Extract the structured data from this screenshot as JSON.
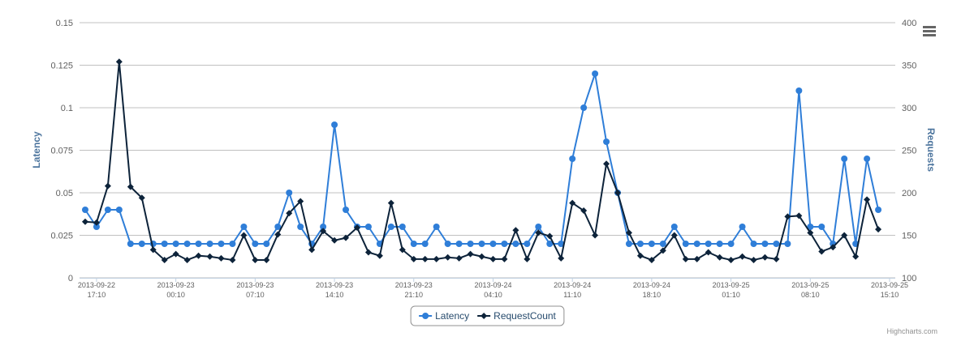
{
  "chart_data": {
    "type": "line",
    "x": [
      "2013-09-22 16:10",
      "2013-09-22 17:10",
      "2013-09-22 18:10",
      "2013-09-22 19:10",
      "2013-09-22 20:10",
      "2013-09-22 21:10",
      "2013-09-22 22:10",
      "2013-09-22 23:10",
      "2013-09-23 00:10",
      "2013-09-23 01:10",
      "2013-09-23 02:10",
      "2013-09-23 03:10",
      "2013-09-23 04:10",
      "2013-09-23 05:10",
      "2013-09-23 06:10",
      "2013-09-23 07:10",
      "2013-09-23 08:10",
      "2013-09-23 09:10",
      "2013-09-23 10:10",
      "2013-09-23 11:10",
      "2013-09-23 12:10",
      "2013-09-23 13:10",
      "2013-09-23 14:10",
      "2013-09-23 15:10",
      "2013-09-23 16:10",
      "2013-09-23 17:10",
      "2013-09-23 18:10",
      "2013-09-23 19:10",
      "2013-09-23 20:10",
      "2013-09-23 21:10",
      "2013-09-23 22:10",
      "2013-09-23 23:10",
      "2013-09-24 00:10",
      "2013-09-24 01:10",
      "2013-09-24 02:10",
      "2013-09-24 03:10",
      "2013-09-24 04:10",
      "2013-09-24 05:10",
      "2013-09-24 06:10",
      "2013-09-24 07:10",
      "2013-09-24 08:10",
      "2013-09-24 09:10",
      "2013-09-24 10:10",
      "2013-09-24 11:10",
      "2013-09-24 12:10",
      "2013-09-24 13:10",
      "2013-09-24 14:10",
      "2013-09-24 15:10",
      "2013-09-24 16:10",
      "2013-09-24 17:10",
      "2013-09-24 18:10",
      "2013-09-24 19:10",
      "2013-09-24 20:10",
      "2013-09-24 21:10",
      "2013-09-24 22:10",
      "2013-09-24 23:10",
      "2013-09-25 00:10",
      "2013-09-25 01:10",
      "2013-09-25 02:10",
      "2013-09-25 03:10",
      "2013-09-25 04:10",
      "2013-09-25 05:10",
      "2013-09-25 06:10",
      "2013-09-25 07:10",
      "2013-09-25 08:10",
      "2013-09-25 09:10",
      "2013-09-25 10:10",
      "2013-09-25 11:10",
      "2013-09-25 12:10",
      "2013-09-25 13:10",
      "2013-09-25 14:10"
    ],
    "series": [
      {
        "name": "Latency",
        "color": "#2f7ed8",
        "marker": "circle",
        "values": [
          0.04,
          0.03,
          0.04,
          0.04,
          0.02,
          0.02,
          0.02,
          0.02,
          0.02,
          0.02,
          0.02,
          0.02,
          0.02,
          0.02,
          0.03,
          0.02,
          0.02,
          0.03,
          0.05,
          0.03,
          0.02,
          0.03,
          0.09,
          0.04,
          0.03,
          0.03,
          0.02,
          0.03,
          0.03,
          0.02,
          0.02,
          0.03,
          0.02,
          0.02,
          0.02,
          0.02,
          0.02,
          0.02,
          0.02,
          0.02,
          0.03,
          0.02,
          0.02,
          0.07,
          0.1,
          0.12,
          0.08,
          0.05,
          0.02,
          0.02,
          0.02,
          0.02,
          0.03,
          0.02,
          0.02,
          0.02,
          0.02,
          0.02,
          0.03,
          0.02,
          0.02,
          0.02,
          0.02,
          0.11,
          0.03,
          0.03,
          0.02,
          0.07,
          0.02,
          0.07,
          0.04
        ]
      },
      {
        "name": "RequestCount",
        "color": "#0d233a",
        "marker": "diamond",
        "axis": "y2",
        "values": [
          166,
          165,
          208,
          354,
          207,
          194,
          133,
          121,
          128,
          121,
          126,
          125,
          123,
          121,
          150,
          121,
          121,
          151,
          176,
          190,
          133,
          155,
          144,
          147,
          159,
          130,
          126,
          188,
          133,
          122,
          122,
          122,
          124,
          123,
          128,
          125,
          122,
          122,
          156,
          122,
          153,
          149,
          123,
          188,
          179,
          150,
          234,
          200,
          153,
          126,
          121,
          132,
          150,
          122,
          122,
          130,
          124,
          121,
          125,
          121,
          124,
          122,
          172,
          173,
          153,
          131,
          136,
          150,
          125,
          192,
          157
        ]
      }
    ],
    "xlim": [
      "2013-09-22 15:40",
      "2013-09-25 15:40"
    ],
    "xticks": [
      "2013-09-22 17:10",
      "2013-09-23 00:10",
      "2013-09-23 07:10",
      "2013-09-23 14:10",
      "2013-09-23 21:10",
      "2013-09-24 04:10",
      "2013-09-24 11:10",
      "2013-09-24 18:10",
      "2013-09-25 01:10",
      "2013-09-25 08:10",
      "2013-09-25 15:10"
    ],
    "ylabel": "Latency",
    "ylim": [
      0,
      0.15
    ],
    "yticks": [
      0,
      0.025,
      0.05,
      0.075,
      0.1,
      0.125,
      0.15
    ],
    "y2label": "Requests",
    "y2lim": [
      100,
      400
    ],
    "y2ticks": [
      100,
      150,
      200,
      250,
      300,
      350,
      400
    ],
    "grid": true,
    "legend": "bottom",
    "credit": "Highcharts.com"
  }
}
